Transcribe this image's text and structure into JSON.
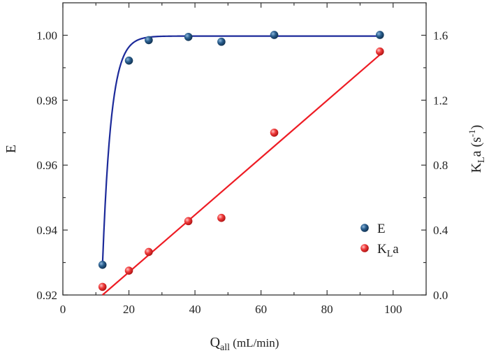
{
  "chart_data": {
    "type": "scatter",
    "x": [
      12,
      20,
      26,
      38,
      48,
      64,
      96
    ],
    "xlim": [
      0,
      110
    ],
    "x_ticks": [
      0,
      20,
      40,
      60,
      80,
      100
    ],
    "xlabel": {
      "main": "Q",
      "sub": "all",
      "rest": " (mL/min)"
    },
    "left_axis": {
      "label": "E",
      "ylim": [
        0.92,
        1.01
      ],
      "ticks": [
        0.92,
        0.94,
        0.96,
        0.98,
        1.0
      ],
      "tick_labels": [
        "0.92",
        "0.94",
        "0.96",
        "0.98",
        "1.00"
      ]
    },
    "right_axis": {
      "label": {
        "main": "K",
        "sub": "L",
        "mid": "a (s",
        "sup": "-1",
        "end": ")"
      },
      "ylim": [
        0.0,
        1.8
      ],
      "ticks": [
        0.0,
        0.4,
        0.8,
        1.2,
        1.6
      ],
      "tick_labels": [
        "0.0",
        "0.4",
        "0.8",
        "1.2",
        "1.6"
      ]
    },
    "series": [
      {
        "name": "E",
        "axis": "left",
        "color": "#1a4a78",
        "fit_color": "#1c2a9a",
        "x": [
          12,
          20,
          26,
          38,
          48,
          64,
          96
        ],
        "values": [
          0.9293,
          0.9922,
          0.9985,
          0.9995,
          0.998,
          1.0001,
          1.0001
        ],
        "fit": {
          "type": "exponential_rise",
          "asymptote": 0.99975,
          "x0": 12,
          "y0": 0.9293,
          "rate": 0.38
        }
      },
      {
        "name": "KLa",
        "axis": "right",
        "color": "#e8262a",
        "fit_color": "#ee1c24",
        "x": [
          12,
          20,
          26,
          38,
          48,
          64,
          96
        ],
        "values": [
          0.05,
          0.15,
          0.265,
          0.455,
          0.475,
          1.0,
          1.5
        ],
        "fit": {
          "type": "linear",
          "x_start": 12,
          "x_end": 96,
          "y_start": 0.0,
          "y_end": 1.48
        }
      }
    ],
    "legend": {
      "position": "bottom-right",
      "entries": [
        {
          "main": "E",
          "sub": ""
        },
        {
          "main": "K",
          "sub": "L",
          "after": "a"
        }
      ]
    }
  }
}
